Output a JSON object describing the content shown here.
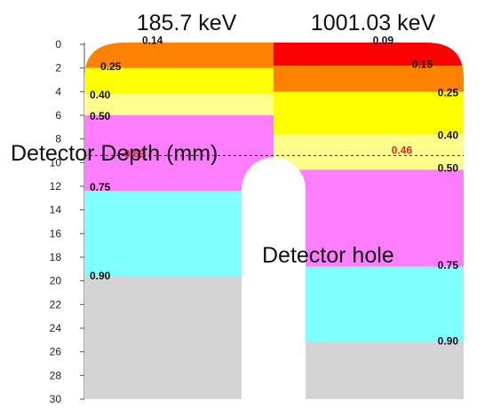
{
  "headers": {
    "left": "185.7 keV",
    "right": "1001.03 keV"
  },
  "overlays": {
    "axis_title": "Detector Depth (mm)",
    "hole_label": "Detector hole"
  },
  "axis": {
    "min": 0,
    "max": 30,
    "ticks": [
      "0",
      "2",
      "4",
      "6",
      "8",
      "10",
      "12",
      "14",
      "16",
      "18",
      "20",
      "22",
      "24",
      "26",
      "28",
      "30"
    ]
  },
  "colors": {
    "red": "#fa0000",
    "orange": "#fe8200",
    "yellow": "#ffff00",
    "lightyellow": "#fefe8c",
    "magenta": "#ff7dff",
    "cyan": "#80ffff",
    "grey": "#d4d4d4",
    "red_text": "#d42a2a"
  },
  "columns": {
    "left": {
      "energy": "185.7 keV",
      "bands": [
        {
          "from": 0,
          "to": 2,
          "color": "orange"
        },
        {
          "from": 2,
          "to": 4.2,
          "color": "yellow"
        },
        {
          "from": 4.2,
          "to": 6,
          "color": "lightyellow"
        },
        {
          "from": 6,
          "to": 12.4,
          "color": "magenta"
        },
        {
          "from": 12.4,
          "to": 19.6,
          "color": "cyan"
        },
        {
          "from": 19.6,
          "to": 30,
          "color": "grey"
        }
      ],
      "labels": [
        {
          "text": "0.14",
          "depth": -0.4
        },
        {
          "text": "0.25",
          "depth": 1.8
        },
        {
          "text": "0.40",
          "depth": 4.2
        },
        {
          "text": "0.50",
          "depth": 6.0
        },
        {
          "text": "0.63",
          "depth": 9.2,
          "red": true
        },
        {
          "text": "0.75",
          "depth": 12.0
        },
        {
          "text": "0.90",
          "depth": 19.5
        }
      ]
    },
    "right": {
      "energy": "1001.03 keV",
      "bands": [
        {
          "from": 0,
          "to": 1.8,
          "color": "red"
        },
        {
          "from": 1.8,
          "to": 4,
          "color": "orange"
        },
        {
          "from": 4,
          "to": 7.6,
          "color": "yellow"
        },
        {
          "from": 7.6,
          "to": 10.6,
          "color": "lightyellow"
        },
        {
          "from": 10.6,
          "to": 18.8,
          "color": "magenta"
        },
        {
          "from": 18.8,
          "to": 25.2,
          "color": "cyan"
        },
        {
          "from": 25.2,
          "to": 30,
          "color": "grey"
        }
      ],
      "labels": [
        {
          "text": "0.09",
          "depth": -0.4
        },
        {
          "text": "0.15",
          "depth": 1.6
        },
        {
          "text": "0.25",
          "depth": 4.0
        },
        {
          "text": "0.40",
          "depth": 7.6
        },
        {
          "text": "0.46",
          "depth": 8.9,
          "red": true
        },
        {
          "text": "0.50",
          "depth": 10.4
        },
        {
          "text": "0.75",
          "depth": 18.6
        },
        {
          "text": "0.90",
          "depth": 25.0
        }
      ]
    }
  },
  "reference_line_depth": 9.4,
  "hole": {
    "top_depth": 9.4,
    "bottom_depth": 30
  }
}
